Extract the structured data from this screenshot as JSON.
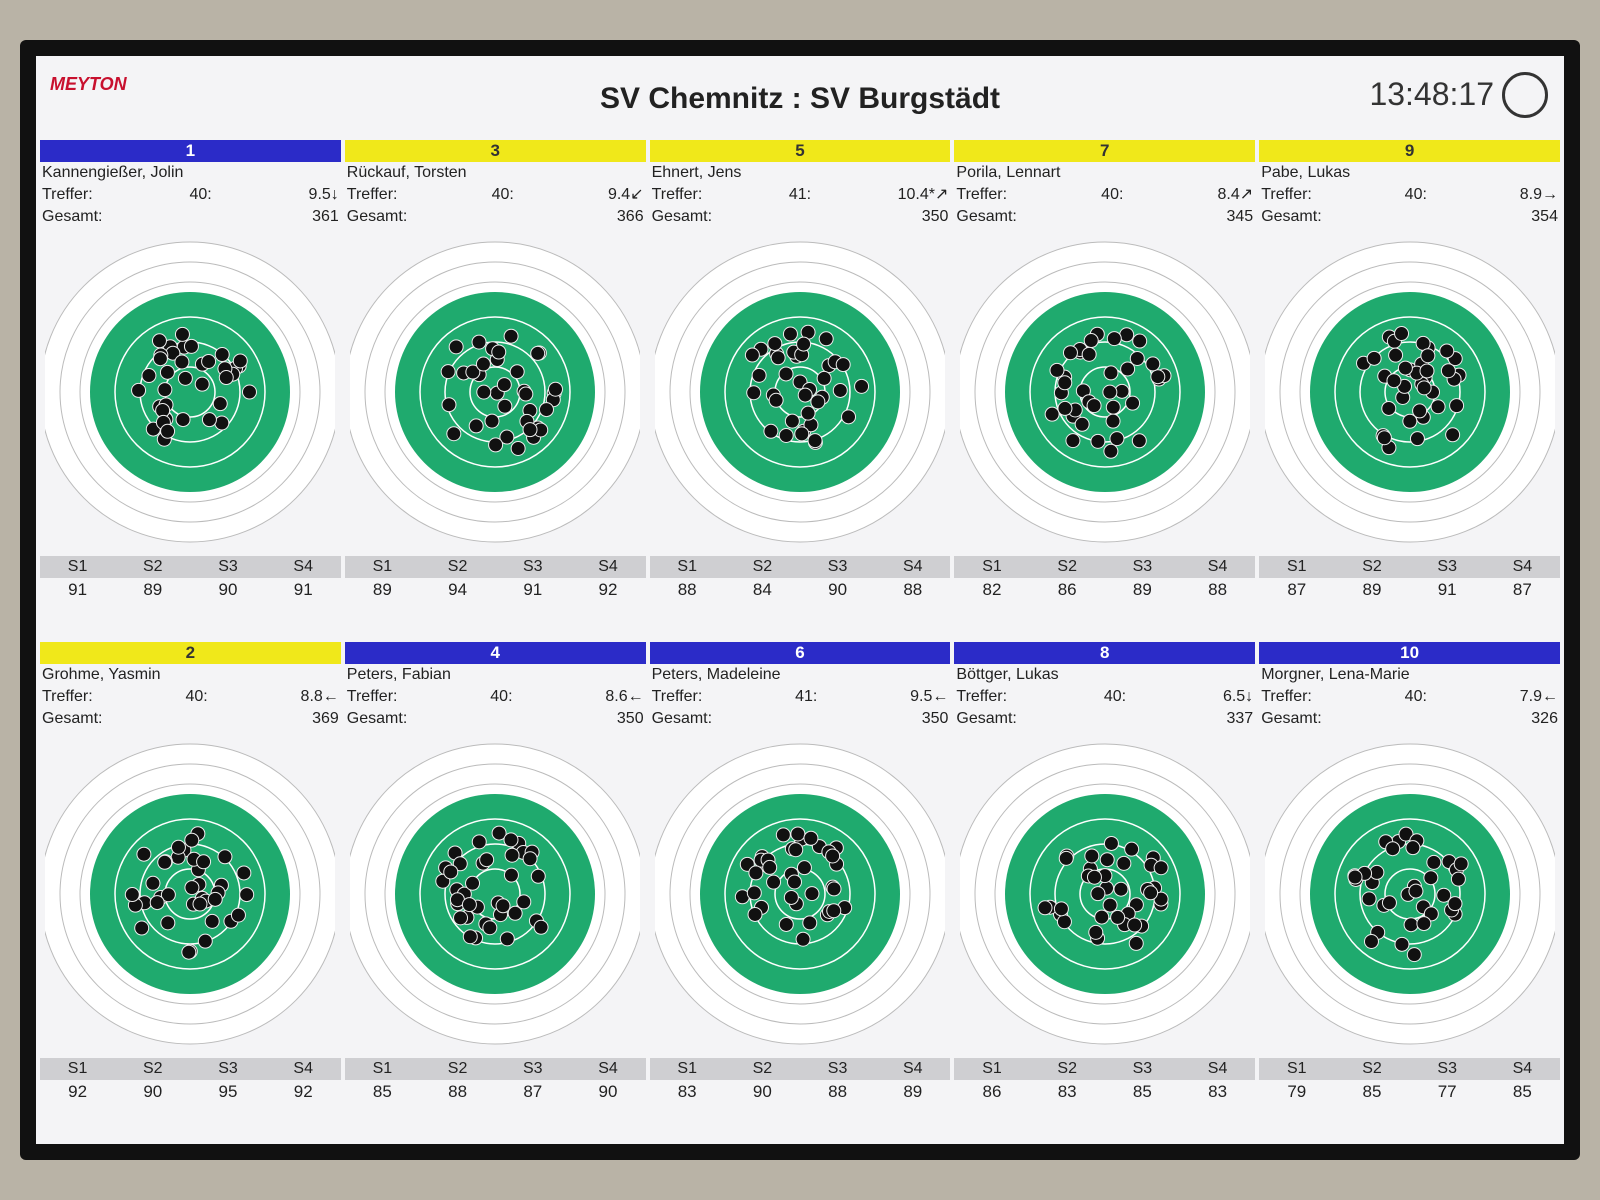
{
  "header": {
    "logo": "MEYTON",
    "title": "SV Chemnitz : SV Burgstädt",
    "clock": "13:48:17"
  },
  "labels": {
    "hits": "Treffer:",
    "total": "Gesamt:",
    "series": [
      "S1",
      "S2",
      "S3",
      "S4"
    ]
  },
  "shooters": [
    {
      "lane": "1",
      "name": "Kannengießer, Jolin",
      "hits": "40:",
      "last": "9.5↓",
      "total": "361",
      "color": "#2b2bc8",
      "series": [
        "91",
        "89",
        "90",
        "91"
      ]
    },
    {
      "lane": "3",
      "name": "Rückauf, Torsten",
      "hits": "40:",
      "last": "9.4↙",
      "total": "366",
      "color": "#f0e81a",
      "series": [
        "89",
        "94",
        "91",
        "92"
      ]
    },
    {
      "lane": "5",
      "name": "Ehnert, Jens",
      "hits": "41:",
      "last": "10.4*↗",
      "total": "350",
      "color": "#f0e81a",
      "series": [
        "88",
        "84",
        "90",
        "88"
      ]
    },
    {
      "lane": "7",
      "name": "Porila, Lennart",
      "hits": "40:",
      "last": "8.4↗",
      "total": "345",
      "color": "#f0e81a",
      "series": [
        "82",
        "86",
        "89",
        "88"
      ]
    },
    {
      "lane": "9",
      "name": "Pabe, Lukas",
      "hits": "40:",
      "last": "8.9→",
      "total": "354",
      "color": "#f0e81a",
      "series": [
        "87",
        "89",
        "91",
        "87"
      ]
    },
    {
      "lane": "2",
      "name": "Grohme, Yasmin",
      "hits": "40:",
      "last": "8.8←",
      "total": "369",
      "color": "#f0e81a",
      "series": [
        "92",
        "90",
        "95",
        "92"
      ]
    },
    {
      "lane": "4",
      "name": "Peters, Fabian",
      "hits": "40:",
      "last": "8.6←",
      "total": "350",
      "color": "#2b2bc8",
      "series": [
        "85",
        "88",
        "87",
        "90"
      ]
    },
    {
      "lane": "6",
      "name": "Peters, Madeleine",
      "hits": "41:",
      "last": "9.5←",
      "total": "350",
      "color": "#2b2bc8",
      "series": [
        "83",
        "90",
        "88",
        "89"
      ]
    },
    {
      "lane": "8",
      "name": "Böttger, Lukas",
      "hits": "40:",
      "last": "6.5↓",
      "total": "337",
      "color": "#2b2bc8",
      "series": [
        "86",
        "83",
        "85",
        "83"
      ]
    },
    {
      "lane": "10",
      "name": "Morgner, Lena-Marie",
      "hits": "40:",
      "last": "7.9←",
      "total": "326",
      "color": "#2b2bc8",
      "series": [
        "79",
        "85",
        "77",
        "85"
      ]
    }
  ]
}
